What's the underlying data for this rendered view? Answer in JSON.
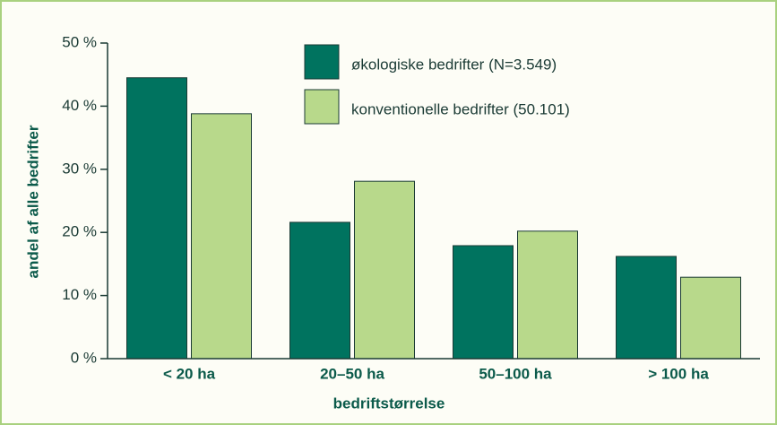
{
  "chart_data": {
    "type": "bar",
    "categories": [
      "< 20 ha",
      "20–50 ha",
      "50–100 ha",
      "> 100 ha"
    ],
    "series": [
      {
        "name": "økologiske bedrifter (N=3.549)",
        "color": "#00735f",
        "values": [
          44.5,
          21.6,
          17.9,
          16.2
        ]
      },
      {
        "name": "konventionelle bedrifter (50.101)",
        "color": "#b8d98b",
        "values": [
          38.8,
          28.1,
          20.2,
          12.9
        ]
      }
    ],
    "xlabel": "bedriftstørrelse",
    "ylabel": "andel af alle bedrifter",
    "ylim": [
      0,
      50
    ],
    "yticks": [
      {
        "value": 0,
        "label": "0 %"
      },
      {
        "value": 10,
        "label": "10 %"
      },
      {
        "value": 20,
        "label": "20 %"
      },
      {
        "value": 30,
        "label": "30 %"
      },
      {
        "value": 40,
        "label": "40 %"
      },
      {
        "value": 50,
        "label": "50 %"
      }
    ],
    "legend": "top-right"
  }
}
